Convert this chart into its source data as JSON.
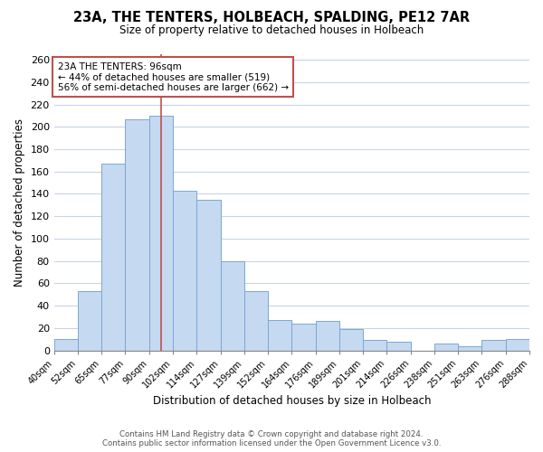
{
  "title": "23A, THE TENTERS, HOLBEACH, SPALDING, PE12 7AR",
  "subtitle": "Size of property relative to detached houses in Holbeach",
  "xlabel": "Distribution of detached houses by size in Holbeach",
  "ylabel": "Number of detached properties",
  "bar_labels": [
    "40sqm",
    "52sqm",
    "65sqm",
    "77sqm",
    "90sqm",
    "102sqm",
    "114sqm",
    "127sqm",
    "139sqm",
    "152sqm",
    "164sqm",
    "176sqm",
    "189sqm",
    "201sqm",
    "214sqm",
    "226sqm",
    "238sqm",
    "251sqm",
    "263sqm",
    "276sqm",
    "288sqm"
  ],
  "bar_values": [
    10,
    53,
    167,
    207,
    210,
    143,
    135,
    80,
    53,
    27,
    24,
    26,
    19,
    9,
    8,
    0,
    6,
    4,
    9,
    10
  ],
  "bar_color": "#c5d9f1",
  "bar_edge_color": "#7ba7d4",
  "marker_line_color": "#c0504d",
  "annotation_title": "23A THE TENTERS: 96sqm",
  "annotation_line1": "← 44% of detached houses are smaller (519)",
  "annotation_line2": "56% of semi-detached houses are larger (662) →",
  "annotation_box_color": "#ffffff",
  "annotation_box_edge": "#c0504d",
  "ylim": [
    0,
    265
  ],
  "yticks": [
    0,
    20,
    40,
    60,
    80,
    100,
    120,
    140,
    160,
    180,
    200,
    220,
    240,
    260
  ],
  "footer_line1": "Contains HM Land Registry data © Crown copyright and database right 2024.",
  "footer_line2": "Contains public sector information licensed under the Open Government Licence v3.0.",
  "bg_color": "#ffffff",
  "grid_color": "#c8d4e8"
}
